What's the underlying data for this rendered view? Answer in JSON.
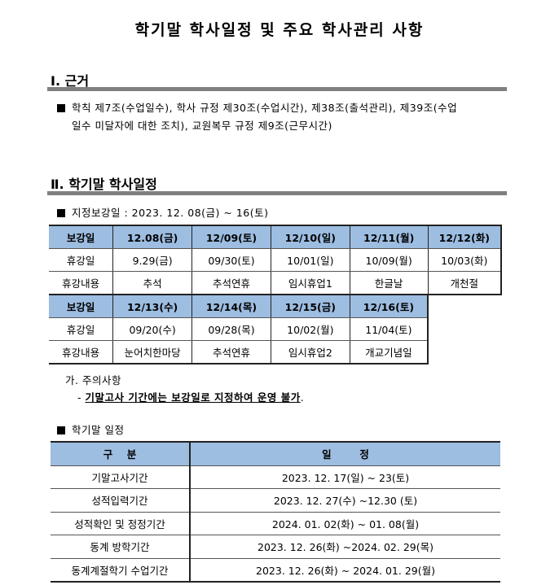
{
  "title": "학기말 학사일정 및 주요 학사관리 사항",
  "section1": {
    "heading": "Ⅰ. 근거",
    "bullet_line1": "학칙 제7조(수업일수), 학사 규정 제30조(수업시간), 제38조(출석관리), 제39조(수업",
    "bullet_line2": "일수 미달자에 대한 조치), 교원복무 규정 제9조(근무시간)"
  },
  "section2": {
    "heading": "Ⅱ. 학기말 학사일정",
    "makeup_intro": "지정보강일 : 2023. 12. 08(금) ~ 16(토)",
    "makeup_table": {
      "row_labels": [
        "보강일",
        "휴강일",
        "휴강내용"
      ],
      "block1": {
        "makeup_days": [
          "12.08(금)",
          "12/09(토)",
          "12/10(일)",
          "12/11(월)",
          "12/12(화)"
        ],
        "cancel_days": [
          "9.29(금)",
          "09/30(토)",
          "10/01(일)",
          "10/09(월)",
          "10/03(화)"
        ],
        "reasons": [
          "추석",
          "추석연휴",
          "임시휴업1",
          "한글날",
          "개천절"
        ]
      },
      "block2": {
        "makeup_days": [
          "12/13(수)",
          "12/14(목)",
          "12/15(금)",
          "12/16(토)"
        ],
        "cancel_days": [
          "09/20(수)",
          "09/28(목)",
          "10/02(월)",
          "11/04(토)"
        ],
        "reasons": [
          "눈어치한마당",
          "추석연휴",
          "임시휴업2",
          "개교기념일"
        ]
      }
    },
    "notes_heading": "가. 주의사항",
    "note_dash": "-",
    "note_text": "기말고사 기간에는 보강일로 지정하여 운영 불가",
    "note_period": ".",
    "schedule_intro": "학기말 일정",
    "schedule_table": {
      "headers": [
        "구    분",
        "일        정"
      ],
      "rows": [
        [
          "기말고사기간",
          "2023. 12. 17(일) ~ 23(토)"
        ],
        [
          "성적입력기간",
          "2023. 12. 27(수) ~12.30 (토)"
        ],
        [
          "성적확인 및 정정기간",
          "2024. 01. 02(화) ~ 01. 08(월)"
        ],
        [
          "동계 방학기간",
          "2023. 12. 26(화) ~2024. 02. 29(목)"
        ],
        [
          "동계계절학기 수업기간",
          "2023. 12. 26(화) ~ 2024. 01. 29(월)"
        ]
      ]
    }
  },
  "colors": {
    "header_fill": "#9dbde1",
    "section_bar": "#808080"
  }
}
